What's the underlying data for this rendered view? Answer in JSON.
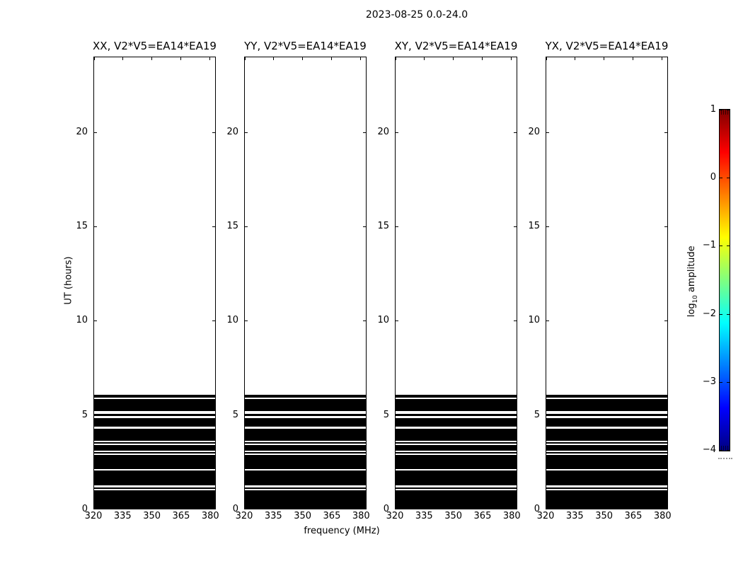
{
  "figure": {
    "suptitle": "2023-08-25 0.0-24.0",
    "background": "#ffffff",
    "foreground": "#000000"
  },
  "chart_data": {
    "type": "heatmap",
    "title": "2023-08-25 0.0-24.0",
    "panels": [
      {
        "title": "XX, V2*V5=EA14*EA19"
      },
      {
        "title": "YY, V2*V5=EA14*EA19"
      },
      {
        "title": "XY, V2*V5=EA14*EA19"
      },
      {
        "title": "YX, V2*V5=EA14*EA19"
      }
    ],
    "xlabel": "frequency (MHz)",
    "ylabel": "UT (hours)",
    "x_ticks": [
      320,
      335,
      350,
      365,
      380
    ],
    "x_tick_labels": [
      "320",
      "335",
      "350",
      "365",
      "380"
    ],
    "xlim": [
      320,
      382.8
    ],
    "y_ticks": [
      0,
      5,
      10,
      15,
      20
    ],
    "y_tick_labels": [
      "0",
      "5",
      "10",
      "15",
      "20"
    ],
    "ylim": [
      0,
      24
    ],
    "grid": false,
    "data_note": "All four panels show an identical solid black data block spanning the full frequency range from UT 0 up to ~6.05 h, interrupted by thin white horizontal gaps; the region above ~6.05 h is empty (white).",
    "data_block_hours": [
      0,
      6.05
    ],
    "data_block_color": "#000000",
    "gap_intervals_hours": [
      [
        0.99,
        1.07
      ],
      [
        1.14,
        1.24
      ],
      [
        2.04,
        2.12
      ],
      [
        2.85,
        2.92
      ],
      [
        3.0,
        3.09
      ],
      [
        3.39,
        3.47
      ],
      [
        3.52,
        3.63
      ],
      [
        4.25,
        4.36
      ],
      [
        4.83,
        4.93
      ],
      [
        5.06,
        5.19
      ],
      [
        5.84,
        5.92
      ]
    ],
    "colorbar": {
      "label_prefix": "log",
      "label_subscript": "10",
      "label_suffix": " amplitude",
      "colormap": "jet",
      "range": [
        -4,
        1
      ],
      "ticks": [
        1,
        0,
        -1,
        -2,
        -3,
        -4
      ],
      "tick_labels": [
        "1",
        "0",
        "−1",
        "−2",
        "−3",
        "−4"
      ],
      "gradient_stops_top_to_bottom": [
        {
          "pos": 0.0,
          "color": "#7f0000"
        },
        {
          "pos": 0.125,
          "color": "#ff0000"
        },
        {
          "pos": 0.375,
          "color": "#ffff00"
        },
        {
          "pos": 0.625,
          "color": "#00ffff"
        },
        {
          "pos": 0.875,
          "color": "#0000ff"
        },
        {
          "pos": 1.0,
          "color": "#00007f"
        }
      ]
    }
  }
}
